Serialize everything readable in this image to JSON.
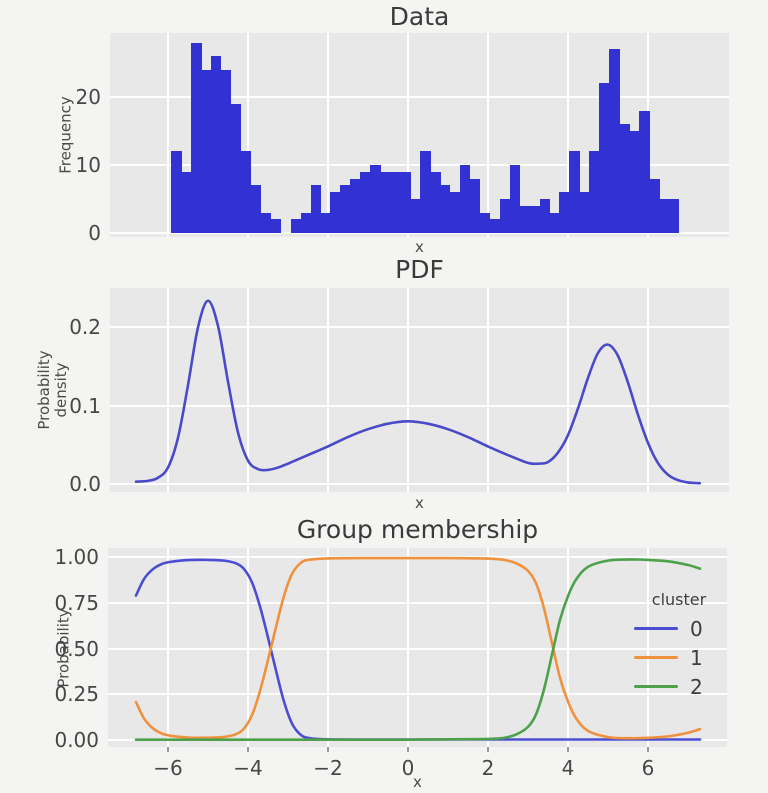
{
  "figure": {
    "background": "#f4f4f2",
    "panel_background": "#e8e8e8",
    "grid_color": "#ffffff",
    "text_color": "#3d3d3d"
  },
  "chart_data": [
    {
      "type": "bar",
      "title": "Data",
      "xlabel": "x",
      "ylabel": "Frequency",
      "bar_color": "#3232d4",
      "xlim": [
        -7.45,
        8.03
      ],
      "ylim": [
        -0.6,
        29.4
      ],
      "yticks": [
        0,
        10,
        20
      ],
      "ytick_labels": [
        "0",
        "10",
        "20"
      ],
      "xgrid": [
        -6,
        -4,
        -2,
        0,
        2,
        4,
        6
      ],
      "bins_start": -5.92,
      "bin_width": 0.249,
      "frequencies": [
        12,
        9,
        28,
        24,
        26,
        24,
        19,
        12,
        7,
        3,
        2,
        0,
        2,
        3,
        7,
        3,
        6,
        7,
        8,
        9,
        10,
        9,
        9,
        9,
        5,
        12,
        9,
        7,
        6,
        10,
        8,
        3,
        2,
        5,
        10,
        4,
        4,
        5,
        3,
        6,
        12,
        6,
        12,
        22,
        27,
        16,
        15,
        18,
        8,
        5,
        5
      ]
    },
    {
      "type": "line",
      "title": "PDF",
      "xlabel": "x",
      "ylabel": "Probability\ndensity",
      "line_color": "#4a4ac9",
      "xlim": [
        -7.45,
        8.03
      ],
      "ylim": [
        -0.0102,
        0.2503
      ],
      "yticks": [
        0,
        0.1,
        0.2
      ],
      "ytick_labels": [
        "0.0",
        "0.1",
        "0.2"
      ],
      "xgrid": [
        -6,
        -4,
        -2,
        0,
        2,
        4,
        6
      ],
      "x": [
        -6.8,
        -6.5,
        -6.25,
        -6.0,
        -5.75,
        -5.5,
        -5.25,
        -5.0,
        -4.75,
        -4.5,
        -4.25,
        -4.0,
        -3.75,
        -3.5,
        -3.25,
        -3.0,
        -2.5,
        -2.0,
        -1.5,
        -1.0,
        -0.5,
        0.0,
        0.5,
        1.0,
        1.5,
        2.0,
        2.5,
        3.0,
        3.25,
        3.5,
        3.75,
        4.0,
        4.25,
        4.5,
        4.75,
        5.0,
        5.25,
        5.5,
        5.75,
        6.0,
        6.25,
        6.5,
        6.75,
        7.0,
        7.3
      ],
      "y": [
        0.003,
        0.004,
        0.008,
        0.021,
        0.059,
        0.126,
        0.2,
        0.234,
        0.202,
        0.131,
        0.066,
        0.03,
        0.019,
        0.018,
        0.021,
        0.026,
        0.037,
        0.048,
        0.06,
        0.07,
        0.077,
        0.08,
        0.077,
        0.07,
        0.06,
        0.048,
        0.037,
        0.027,
        0.026,
        0.028,
        0.04,
        0.062,
        0.096,
        0.135,
        0.167,
        0.178,
        0.164,
        0.13,
        0.089,
        0.053,
        0.027,
        0.012,
        0.005,
        0.002,
        0.001
      ]
    },
    {
      "type": "line",
      "title": "Group membership",
      "xlabel": "x",
      "ylabel": "Probability",
      "xlim": [
        -7.5,
        7.975
      ],
      "ylim": [
        -0.038,
        1.05
      ],
      "yticks": [
        0,
        0.25,
        0.5,
        0.75,
        1.0
      ],
      "ytick_labels": [
        "0.00",
        "0.25",
        "0.50",
        "0.75",
        "1.00"
      ],
      "xticks": [
        -6,
        -4,
        -2,
        0,
        2,
        4,
        6
      ],
      "xtick_labels": [
        "−6",
        "−4",
        "−2",
        "0",
        "2",
        "4",
        "6"
      ],
      "xgrid": [
        -6,
        -4,
        -2,
        0,
        2,
        4,
        6
      ],
      "legend": {
        "title": "cluster",
        "entries": [
          {
            "label": "0",
            "color": "#4b4ed2"
          },
          {
            "label": "1",
            "color": "#f0913e"
          },
          {
            "label": "2",
            "color": "#4da14b"
          }
        ]
      },
      "series": [
        {
          "name": "0",
          "color": "#4b4ed2",
          "x": [
            -6.8,
            -6.6,
            -6.4,
            -6.2,
            -6.0,
            -5.5,
            -5.0,
            -4.6,
            -4.3,
            -4.1,
            -3.9,
            -3.7,
            -3.5,
            -3.3,
            -3.1,
            -2.9,
            -2.7,
            -2.5,
            -2.0,
            -1.0,
            0.0,
            1.0,
            2.0,
            3.0,
            4.0,
            5.0,
            6.0,
            7.3
          ],
          "y": [
            0.79,
            0.88,
            0.93,
            0.958,
            0.972,
            0.984,
            0.985,
            0.981,
            0.966,
            0.935,
            0.862,
            0.73,
            0.56,
            0.38,
            0.21,
            0.09,
            0.032,
            0.012,
            0.004,
            0.003,
            0.003,
            0.003,
            0.003,
            0.003,
            0.003,
            0.003,
            0.003,
            0.003
          ]
        },
        {
          "name": "1",
          "color": "#f0913e",
          "x": [
            -6.8,
            -6.6,
            -6.4,
            -6.2,
            -6.0,
            -5.5,
            -5.0,
            -4.6,
            -4.3,
            -4.1,
            -3.9,
            -3.7,
            -3.5,
            -3.3,
            -3.1,
            -2.9,
            -2.7,
            -2.5,
            -2.0,
            -1.0,
            0.0,
            1.0,
            2.0,
            2.4,
            2.7,
            3.0,
            3.2,
            3.4,
            3.6,
            3.8,
            4.0,
            4.2,
            4.5,
            5.0,
            5.5,
            6.0,
            6.5,
            7.0,
            7.3
          ],
          "y": [
            0.208,
            0.118,
            0.068,
            0.04,
            0.026,
            0.014,
            0.013,
            0.017,
            0.032,
            0.063,
            0.136,
            0.268,
            0.438,
            0.618,
            0.788,
            0.908,
            0.965,
            0.985,
            0.993,
            0.995,
            0.995,
            0.995,
            0.992,
            0.985,
            0.967,
            0.925,
            0.857,
            0.72,
            0.53,
            0.34,
            0.21,
            0.12,
            0.05,
            0.016,
            0.01,
            0.012,
            0.02,
            0.04,
            0.06
          ]
        },
        {
          "name": "2",
          "color": "#4da14b",
          "x": [
            -6.8,
            -6.0,
            -5.0,
            -4.0,
            -3.0,
            -2.0,
            -1.0,
            0.0,
            1.0,
            2.0,
            2.4,
            2.7,
            3.0,
            3.2,
            3.4,
            3.6,
            3.8,
            4.0,
            4.2,
            4.5,
            5.0,
            5.5,
            6.0,
            6.5,
            7.0,
            7.3
          ],
          "y": [
            0.002,
            0.002,
            0.002,
            0.002,
            0.002,
            0.002,
            0.002,
            0.002,
            0.004,
            0.006,
            0.012,
            0.03,
            0.072,
            0.14,
            0.277,
            0.467,
            0.657,
            0.787,
            0.877,
            0.947,
            0.981,
            0.987,
            0.985,
            0.977,
            0.957,
            0.937
          ]
        }
      ]
    }
  ]
}
